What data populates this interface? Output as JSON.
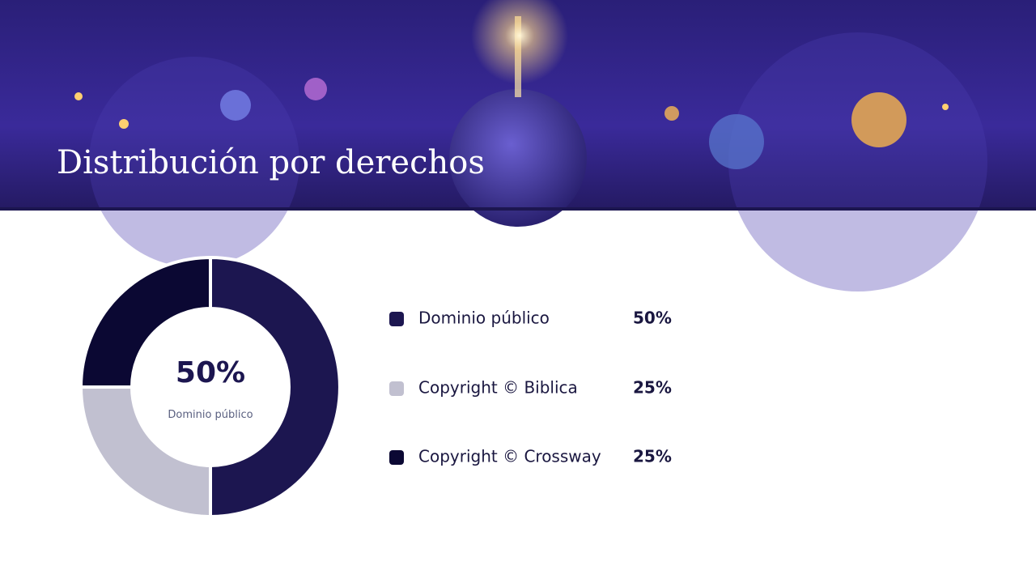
{
  "chart_data": {
    "type": "pie",
    "title": "Distribución por derechos",
    "categories": [
      "Dominio público",
      "Copyright © Biblica",
      "Copyright © Crossway"
    ],
    "values": [
      50,
      25,
      25
    ],
    "value_labels": [
      "50%",
      "25%",
      "25%"
    ],
    "colors": [
      "#1c1650",
      "#c1c0d0",
      "#0b0833"
    ],
    "donut": true
  }
}
